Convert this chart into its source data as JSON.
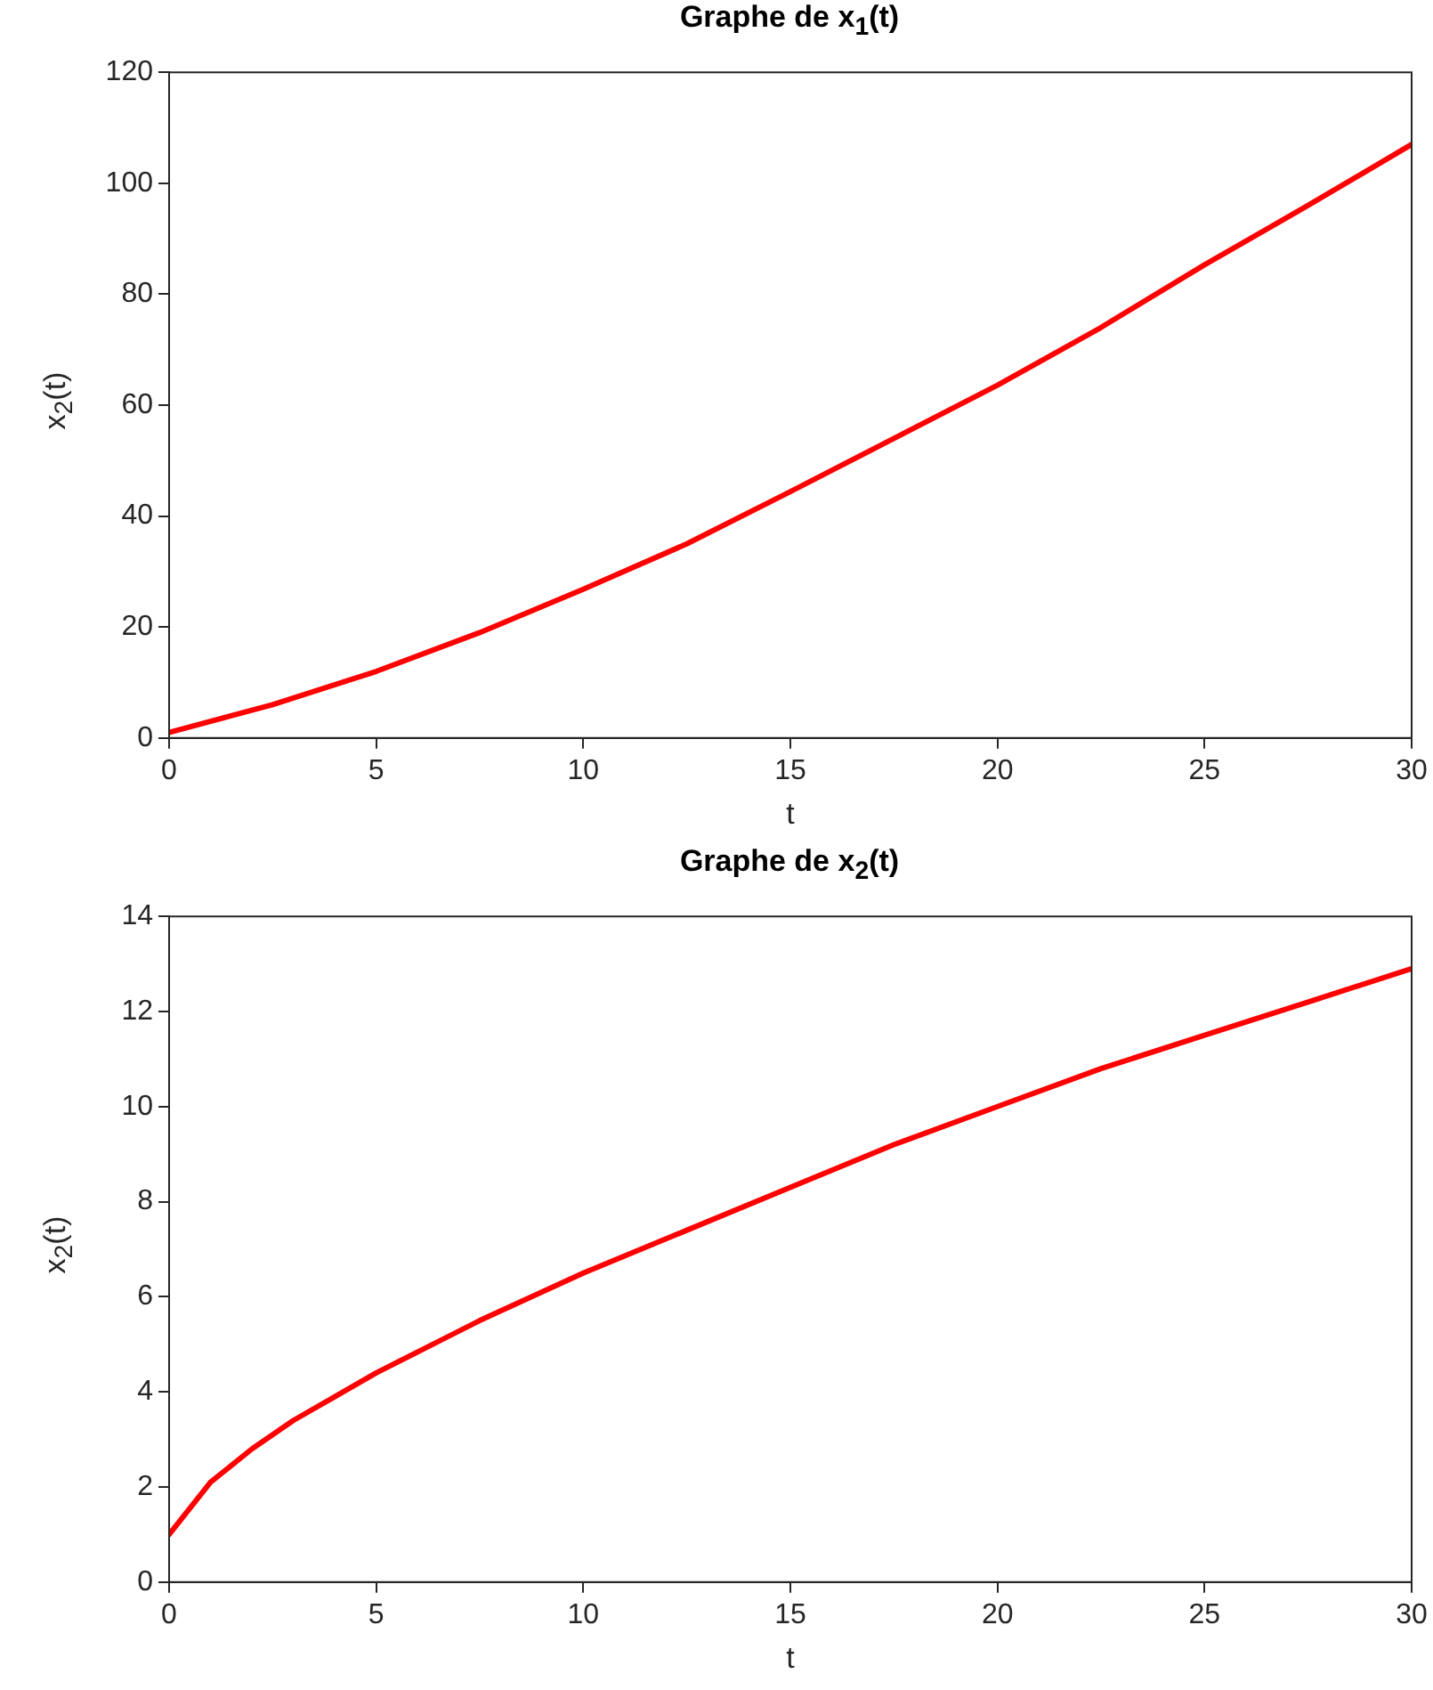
{
  "chart_data": [
    {
      "type": "line",
      "title": "Graphe de x$_{1}$(t)",
      "xlabel": "t",
      "ylabel": "x$_{2}$(t)",
      "xlim": [
        0,
        30
      ],
      "ylim": [
        0,
        120
      ],
      "xticks": [
        0,
        5,
        10,
        15,
        20,
        25,
        30
      ],
      "yticks": [
        0,
        20,
        40,
        60,
        80,
        100,
        120
      ],
      "grid": false,
      "legend": false,
      "marker": "none",
      "line_style": "solid",
      "series": [
        {
          "color": "#ff0000",
          "x": [
            0,
            2.5,
            5,
            7.5,
            10,
            12.5,
            15,
            17.5,
            20,
            22.5,
            25,
            27.5,
            30
          ],
          "values": [
            1,
            6,
            12,
            19,
            26.8,
            35,
            44.4,
            54,
            63.6,
            74,
            85.3,
            96,
            107
          ]
        }
      ]
    },
    {
      "type": "line",
      "title": "Graphe de x$_{2}$(t)",
      "xlabel": "t",
      "ylabel": "x$_{2}$(t)",
      "xlim": [
        0,
        30
      ],
      "ylim": [
        0,
        14
      ],
      "xticks": [
        0,
        5,
        10,
        15,
        20,
        25,
        30
      ],
      "yticks": [
        0,
        2,
        4,
        6,
        8,
        10,
        12,
        14
      ],
      "grid": false,
      "legend": false,
      "marker": "none",
      "line_style": "solid",
      "series": [
        {
          "color": "#ff0000",
          "x": [
            0,
            1,
            2,
            3,
            4,
            5,
            7.5,
            10,
            12.5,
            15,
            17.5,
            20,
            22.5,
            25,
            27.5,
            30
          ],
          "values": [
            1,
            2.1,
            2.8,
            3.4,
            3.9,
            4.4,
            5.5,
            6.5,
            7.4,
            8.3,
            9.2,
            10,
            10.8,
            11.5,
            12.2,
            12.9
          ]
        }
      ]
    }
  ]
}
